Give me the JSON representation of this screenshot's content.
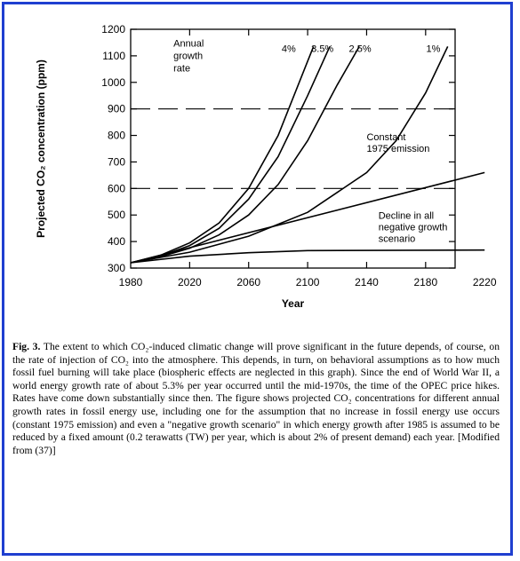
{
  "chart_data": {
    "type": "line",
    "title": "",
    "xlabel": "Year",
    "ylabel": "Projected CO₂ concentration (ppm)",
    "xlim": [
      1980,
      2200
    ],
    "ylim": [
      300,
      1200
    ],
    "x_ticks": [
      1980,
      2020,
      2060,
      2100,
      2140,
      2180,
      2220
    ],
    "x_tick_labels": [
      "1980",
      "2020",
      "2060",
      "2100",
      "2140",
      "2180",
      "2220"
    ],
    "y_ticks": [
      300,
      400,
      500,
      600,
      700,
      800,
      900,
      1000,
      1100,
      1200
    ],
    "y_tick_labels": [
      "300",
      "400",
      "500",
      "600",
      "700",
      "800",
      "900",
      "1000",
      "1100",
      "1200"
    ],
    "dashed_reference_lines": [
      600,
      900
    ],
    "grid": false,
    "series": [
      {
        "name": "4%",
        "points": [
          [
            1980,
            320
          ],
          [
            2000,
            348
          ],
          [
            2020,
            395
          ],
          [
            2040,
            470
          ],
          [
            2060,
            600
          ],
          [
            2080,
            800
          ],
          [
            2100,
            1080
          ],
          [
            2104,
            1135
          ]
        ]
      },
      {
        "name": "3.5%",
        "points": [
          [
            1980,
            320
          ],
          [
            2000,
            345
          ],
          [
            2020,
            385
          ],
          [
            2040,
            450
          ],
          [
            2060,
            560
          ],
          [
            2080,
            720
          ],
          [
            2100,
            950
          ],
          [
            2115,
            1135
          ]
        ]
      },
      {
        "name": "2.5%",
        "points": [
          [
            1980,
            320
          ],
          [
            2000,
            342
          ],
          [
            2020,
            375
          ],
          [
            2040,
            425
          ],
          [
            2060,
            500
          ],
          [
            2080,
            615
          ],
          [
            2100,
            780
          ],
          [
            2120,
            990
          ],
          [
            2135,
            1135
          ]
        ]
      },
      {
        "name": "1%",
        "points": [
          [
            1980,
            320
          ],
          [
            2020,
            360
          ],
          [
            2060,
            420
          ],
          [
            2100,
            510
          ],
          [
            2140,
            660
          ],
          [
            2160,
            780
          ],
          [
            2180,
            960
          ],
          [
            2195,
            1135
          ]
        ]
      },
      {
        "name": "Constant 1975 emission",
        "points": [
          [
            1980,
            320
          ],
          [
            2220,
            660
          ]
        ]
      },
      {
        "name": "Decline in all negative growth scenario",
        "points": [
          [
            1980,
            320
          ],
          [
            2020,
            345
          ],
          [
            2060,
            358
          ],
          [
            2100,
            366
          ],
          [
            2220,
            368
          ]
        ]
      }
    ],
    "annotations": {
      "growth_rate": [
        "Annual",
        "growth",
        "rate"
      ],
      "constant": [
        "Constant",
        "1975 emission"
      ],
      "decline": [
        "Decline in all",
        "negative growth",
        "scenario"
      ]
    }
  },
  "caption": {
    "label": "Fig. 3.",
    "text": "The extent to which CO₂-induced climatic change will prove significant in the future depends, of course, on the rate of injection of CO₂ into the atmosphere. This depends, in turn, on behavioral assumptions as to how much fossil fuel burning will take place (biospheric effects are neglected in this graph). Since the end of World War II, a world energy growth rate of about 5.3% per year occurred until the mid-1970s, the time of the OPEC price hikes. Rates have come down substantially since then. The figure shows projected CO₂ concentrations for different annual growth rates in fossil energy use, including one for the assumption that no increase in fossil energy use occurs (constant 1975 emission) and even a \"negative growth scenario\" in which energy growth after 1985 is assumed to be reduced by a fixed amount (0.2 terawatts (TW) per year, which is about 2% of present demand) each year. [Modified from (37)]"
  },
  "colors": {
    "frame": "#1f3fd0",
    "ink": "#000000"
  }
}
